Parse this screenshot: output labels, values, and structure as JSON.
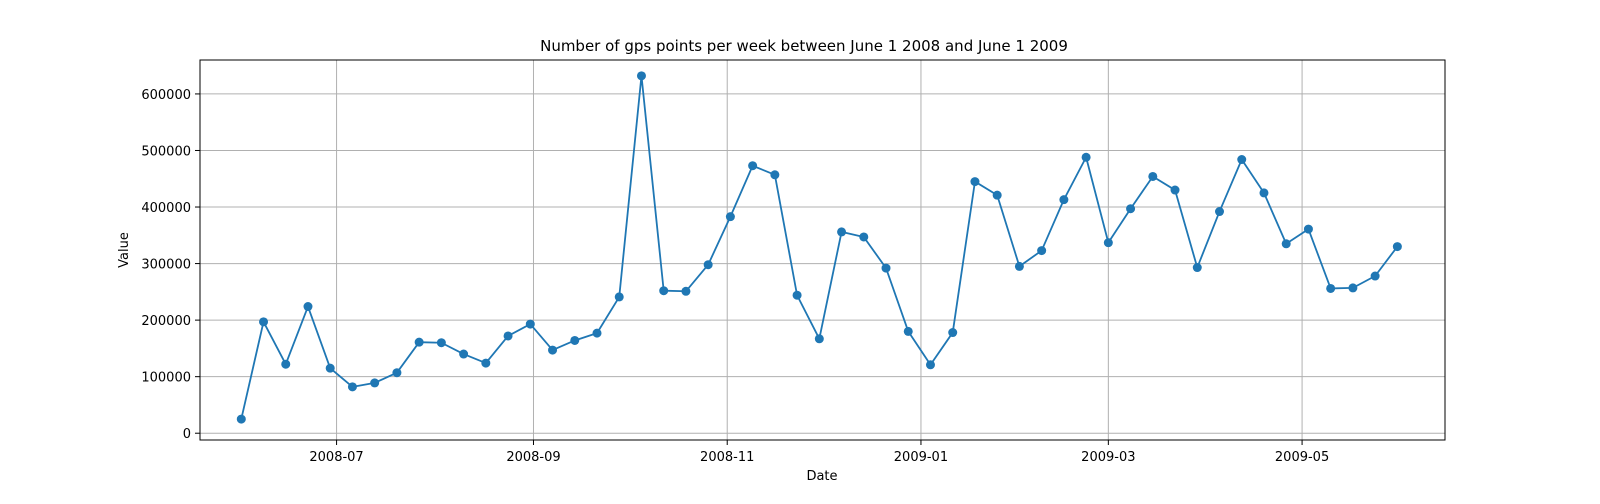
{
  "chart_data": {
    "type": "line",
    "title": "Number of gps points per week between June 1 2008 and June 1 2009",
    "xlabel": "Date",
    "ylabel": "Value",
    "xlim": [
      "2008-05-19",
      "2009-06-15"
    ],
    "ylim": [
      -12000,
      660000
    ],
    "grid": true,
    "series_color": "#1f77b4",
    "x_ticks": [
      {
        "date": "2008-07-01",
        "label": "2008-07"
      },
      {
        "date": "2008-09-01",
        "label": "2008-09"
      },
      {
        "date": "2008-11-01",
        "label": "2008-11"
      },
      {
        "date": "2009-01-01",
        "label": "2009-01"
      },
      {
        "date": "2009-03-01",
        "label": "2009-03"
      },
      {
        "date": "2009-05-01",
        "label": "2009-05"
      }
    ],
    "y_ticks": [
      {
        "value": 0,
        "label": "0"
      },
      {
        "value": 100000,
        "label": "100000"
      },
      {
        "value": 200000,
        "label": "200000"
      },
      {
        "value": 300000,
        "label": "300000"
      },
      {
        "value": 400000,
        "label": "400000"
      },
      {
        "value": 500000,
        "label": "500000"
      },
      {
        "value": 600000,
        "label": "600000"
      }
    ],
    "series": [
      {
        "x": [
          "2008-06-01",
          "2008-06-08",
          "2008-06-15",
          "2008-06-22",
          "2008-06-29",
          "2008-07-06",
          "2008-07-13",
          "2008-07-20",
          "2008-07-27",
          "2008-08-03",
          "2008-08-10",
          "2008-08-17",
          "2008-08-24",
          "2008-08-31",
          "2008-09-07",
          "2008-09-14",
          "2008-09-21",
          "2008-09-28",
          "2008-10-05",
          "2008-10-12",
          "2008-10-19",
          "2008-10-26",
          "2008-11-02",
          "2008-11-09",
          "2008-11-16",
          "2008-11-23",
          "2008-11-30",
          "2008-12-07",
          "2008-12-14",
          "2008-12-21",
          "2008-12-28",
          "2009-01-04",
          "2009-01-11",
          "2009-01-18",
          "2009-01-25",
          "2009-02-01",
          "2009-02-08",
          "2009-02-15",
          "2009-02-22",
          "2009-03-01",
          "2009-03-08",
          "2009-03-15",
          "2009-03-22",
          "2009-03-29",
          "2009-04-05",
          "2009-04-12",
          "2009-04-19",
          "2009-04-26",
          "2009-05-03",
          "2009-05-10",
          "2009-05-17",
          "2009-05-24",
          "2009-05-31"
        ],
        "values": [
          25000,
          197000,
          122000,
          224000,
          115000,
          82000,
          89000,
          107000,
          161000,
          160000,
          140000,
          124000,
          172000,
          193000,
          147000,
          164000,
          177000,
          241000,
          632000,
          252000,
          251000,
          298000,
          383000,
          473000,
          457000,
          244000,
          167000,
          356000,
          347000,
          292000,
          180000,
          121000,
          178000,
          445000,
          421000,
          295000,
          323000,
          413000,
          488000,
          337000,
          397000,
          454000,
          430000,
          293000,
          392000,
          484000,
          425000,
          335000,
          361000,
          256000,
          257000,
          278000,
          330000
        ]
      }
    ]
  }
}
